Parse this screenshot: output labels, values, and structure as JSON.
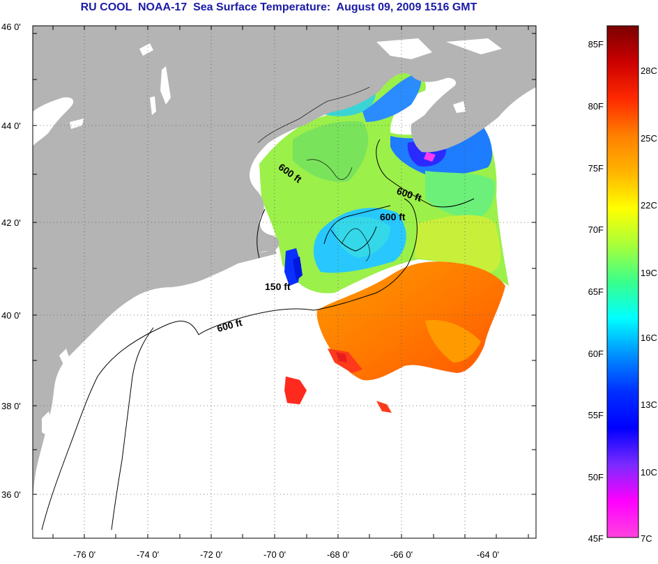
{
  "title": "RU COOL  NOAA-17  Sea Surface Temperature:  August 09, 2009 1516 GMT",
  "map": {
    "lat_labels": [
      "46 0'",
      "44 0'",
      "42 0'",
      "40 0'",
      "38 0'",
      "36 0'"
    ],
    "lon_labels": [
      "-76 0'",
      "-74 0'",
      "-72 0'",
      "-70 0'",
      "-68 0'",
      "-66 0'",
      "-64 0'"
    ],
    "contour_labels": [
      "600 ft",
      "600 ft",
      "600 ft",
      "150 ft",
      "600 ft"
    ],
    "colors": {
      "land": "#b4b4b4",
      "no_data": "#ffffff",
      "contour": "#000000",
      "grid": "#555555"
    }
  },
  "colorbar": {
    "f_labels": [
      "85F",
      "80F",
      "75F",
      "70F",
      "65F",
      "60F",
      "55F",
      "50F",
      "45F"
    ],
    "c_labels": [
      "28C",
      "25C",
      "22C",
      "19C",
      "16C",
      "13C",
      "10C",
      "7C"
    ],
    "stops": [
      "#7a0000",
      "#cc0000",
      "#ff2a00",
      "#ff7f00",
      "#ffb400",
      "#ffff00",
      "#a8ff3a",
      "#3aff8a",
      "#00ffff",
      "#0090ff",
      "#0030ff",
      "#0000ff",
      "#7a2aff",
      "#ff00ff",
      "#ff44dd"
    ]
  }
}
